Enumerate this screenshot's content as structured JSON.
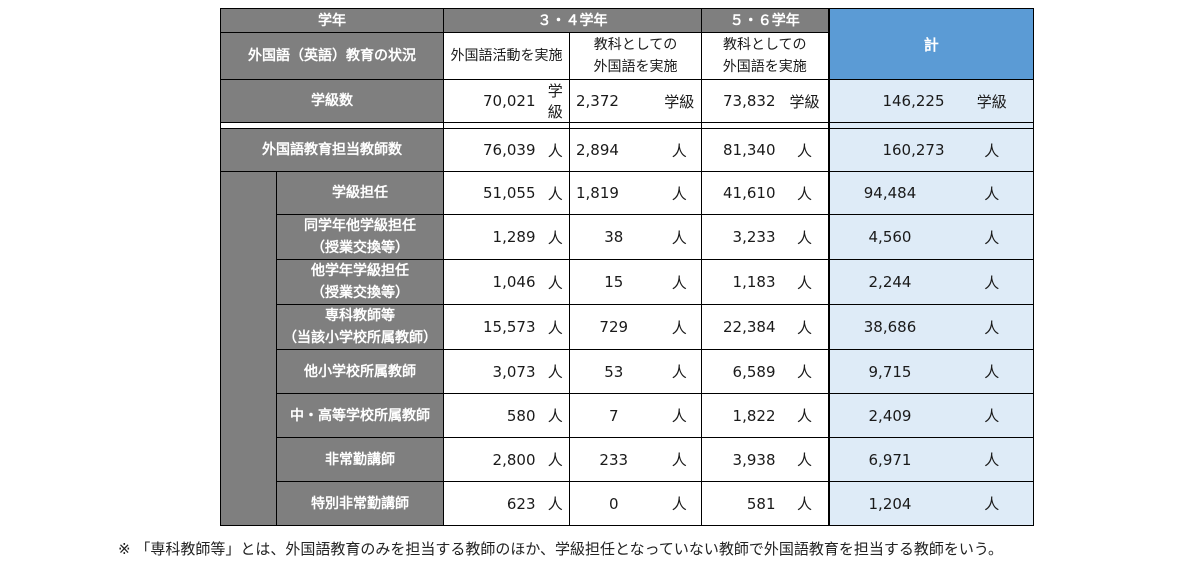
{
  "header": {
    "grade": "学年",
    "status": "外国語（英語）教育の状況",
    "g34": "３・４学年",
    "g56": "５・６学年",
    "total": "計",
    "sub_activity": "外国語活動を実施",
    "sub_subject_34_l1": "教科としての",
    "sub_subject_34_l2": "外国語を実施",
    "sub_subject_56_l1": "教科としての",
    "sub_subject_56_l2": "外国語を実施"
  },
  "classes": {
    "label": "学級数",
    "c1": "70,021",
    "u1": "学級",
    "c2": "2,372",
    "u2": "学級",
    "c3": "73,832",
    "u3": "学級",
    "c4": "146,225",
    "u4": "学級"
  },
  "teachers_total": {
    "label": "外国語教育担当教師数",
    "v1": "76,039",
    "v2": "2,894",
    "v3": "81,340",
    "v4": "160,273",
    "unit": "人"
  },
  "rows": [
    {
      "l1": "学級担任",
      "l2": "",
      "v1": "51,055",
      "v2": "1,819",
      "v3": "41,610",
      "v4": "94,484",
      "unit": "人"
    },
    {
      "l1": "同学年他学級担任",
      "l2": "（授業交換等）",
      "v1": "1,289",
      "v2": "38",
      "v3": "3,233",
      "v4": "4,560",
      "unit": "人"
    },
    {
      "l1": "他学年学級担任",
      "l2": "（授業交換等）",
      "v1": "1,046",
      "v2": "15",
      "v3": "1,183",
      "v4": "2,244",
      "unit": "人"
    },
    {
      "l1": "専科教師等",
      "l2": "（当該小学校所属教師）",
      "v1": "15,573",
      "v2": "729",
      "v3": "22,384",
      "v4": "38,686",
      "unit": "人"
    },
    {
      "l1": "他小学校所属教師",
      "l2": "",
      "v1": "3,073",
      "v2": "53",
      "v3": "6,589",
      "v4": "9,715",
      "unit": "人"
    },
    {
      "l1": "中・高等学校所属教師",
      "l2": "",
      "v1": "580",
      "v2": "7",
      "v3": "1,822",
      "v4": "2,409",
      "unit": "人"
    },
    {
      "l1": "非常勤講師",
      "l2": "",
      "v1": "2,800",
      "v2": "233",
      "v3": "3,938",
      "v4": "6,971",
      "unit": "人"
    },
    {
      "l1": "特別非常勤講師",
      "l2": "",
      "v1": "623",
      "v2": "0",
      "v3": "581",
      "v4": "1,204",
      "unit": "人"
    }
  ],
  "footnote": "※ 「専科教師等」とは、外国語教育のみを担当する教師のほか、学級担任となっていない教師で外国語教育を担当する教師をいう。"
}
